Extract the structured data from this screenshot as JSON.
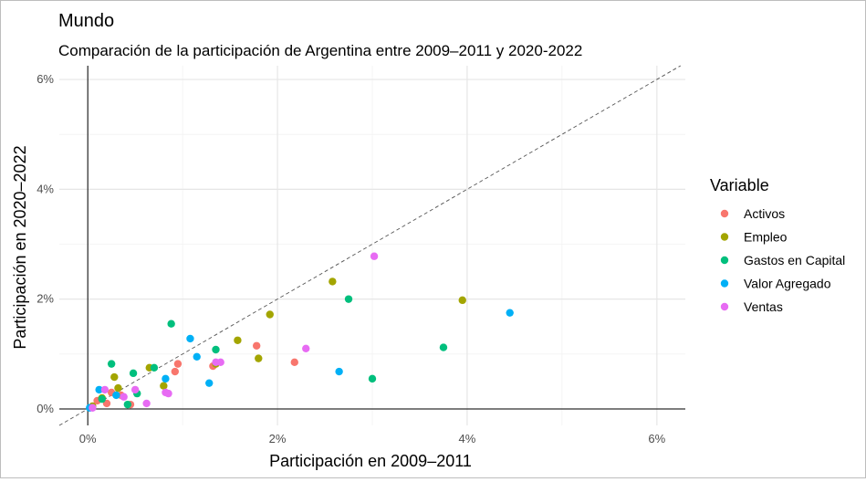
{
  "chart_data": {
    "type": "scatter",
    "title": "Mundo",
    "subtitle": "Comparación de la participación de Argentina entre 2009–2011 y 2020-2022",
    "xlabel": "Participación en 2009–2011",
    "ylabel": "Participación en 2020–2022",
    "xlim": [
      -0.3,
      6.3
    ],
    "ylim": [
      -0.3,
      6.25
    ],
    "x_ticks": [
      0,
      2,
      4,
      6
    ],
    "y_ticks": [
      0,
      2,
      4,
      6
    ],
    "x_tick_labels": [
      "0%",
      "2%",
      "4%",
      "6%"
    ],
    "y_tick_labels": [
      "0%",
      "2%",
      "4%",
      "6%"
    ],
    "grid": true,
    "reference_line": "y = x (dashed)",
    "legend_title": "Variable",
    "legend_position": "right",
    "series": [
      {
        "name": "Activos",
        "color": "#F8766D",
        "points": [
          [
            0.1,
            0.15
          ],
          [
            0.2,
            0.1
          ],
          [
            0.25,
            0.3
          ],
          [
            0.35,
            0.25
          ],
          [
            0.45,
            0.08
          ],
          [
            0.92,
            0.68
          ],
          [
            0.95,
            0.82
          ],
          [
            1.32,
            0.78
          ],
          [
            1.78,
            1.15
          ],
          [
            2.18,
            0.85
          ]
        ]
      },
      {
        "name": "Empleo",
        "color": "#A3A500",
        "points": [
          [
            0.05,
            0.05
          ],
          [
            0.15,
            0.2
          ],
          [
            0.28,
            0.58
          ],
          [
            0.32,
            0.38
          ],
          [
            0.65,
            0.75
          ],
          [
            0.8,
            0.42
          ],
          [
            1.35,
            0.82
          ],
          [
            1.58,
            1.25
          ],
          [
            1.8,
            0.92
          ],
          [
            1.92,
            1.72
          ],
          [
            2.58,
            2.32
          ],
          [
            3.95,
            1.98
          ]
        ]
      },
      {
        "name": "Gastos en Capital",
        "color": "#00BF7D",
        "points": [
          [
            0.15,
            0.18
          ],
          [
            0.25,
            0.82
          ],
          [
            0.42,
            0.08
          ],
          [
            0.48,
            0.65
          ],
          [
            0.52,
            0.28
          ],
          [
            0.7,
            0.75
          ],
          [
            0.88,
            1.55
          ],
          [
            1.35,
            1.08
          ],
          [
            2.75,
            2.0
          ],
          [
            3.0,
            0.55
          ],
          [
            3.75,
            1.12
          ]
        ]
      },
      {
        "name": "Valor Agregado",
        "color": "#00B0F6",
        "points": [
          [
            0.02,
            0.02
          ],
          [
            0.12,
            0.35
          ],
          [
            0.3,
            0.25
          ],
          [
            0.82,
            0.55
          ],
          [
            1.08,
            1.28
          ],
          [
            1.15,
            0.95
          ],
          [
            1.28,
            0.47
          ],
          [
            2.65,
            0.68
          ],
          [
            4.45,
            1.75
          ]
        ]
      },
      {
        "name": "Ventas",
        "color": "#E76BF3",
        "points": [
          [
            0.05,
            0.02
          ],
          [
            0.18,
            0.35
          ],
          [
            0.38,
            0.22
          ],
          [
            0.5,
            0.35
          ],
          [
            0.62,
            0.1
          ],
          [
            0.85,
            0.28
          ],
          [
            0.82,
            0.3
          ],
          [
            1.35,
            0.85
          ],
          [
            1.4,
            0.85
          ],
          [
            2.3,
            1.1
          ],
          [
            3.02,
            2.78
          ]
        ]
      }
    ]
  }
}
